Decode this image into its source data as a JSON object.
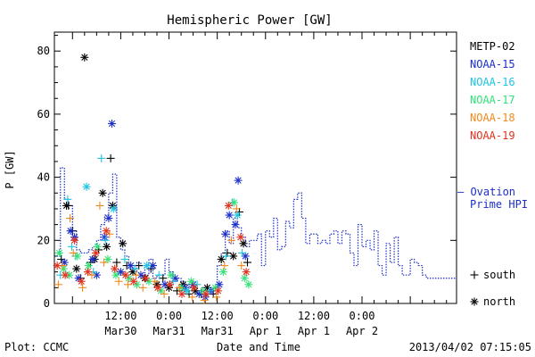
{
  "chart_data": {
    "type": "scatter",
    "title": "Hemispheric Power [GW]",
    "ylabel": "P [GW]",
    "xlabel": "Date and Time",
    "ylim": [
      0,
      86
    ],
    "xlim_hours": [
      -16.5,
      83.5
    ],
    "y_ticks": [
      0,
      20,
      40,
      60,
      80
    ],
    "x_ticks": [
      {
        "t": 0,
        "line1": "12:00",
        "line2": "Mar30"
      },
      {
        "t": 12,
        "line1": "0:00",
        "line2": "Mar31"
      },
      {
        "t": 24,
        "line1": "12:00",
        "line2": "Mar31"
      },
      {
        "t": 36,
        "line1": "0:00",
        "line2": "Apr 1"
      },
      {
        "t": 48,
        "line1": "12:00",
        "line2": "Apr 1"
      },
      {
        "t": 60,
        "line1": "0:00",
        "line2": "Apr 2"
      }
    ],
    "x_axis_note": "x values are hours relative to 2013-03-30 12:00 UT",
    "series": [
      {
        "name": "METP-02",
        "color": "#000000",
        "points": [
          {
            "x": -14.8,
            "y": 14,
            "m": "+"
          },
          {
            "x": -13.5,
            "y": 31,
            "m": "*"
          },
          {
            "x": -13,
            "y": 31,
            "m": "+"
          },
          {
            "x": -12,
            "y": 23,
            "m": "+"
          },
          {
            "x": -11,
            "y": 11,
            "m": "*"
          },
          {
            "x": -10,
            "y": 8,
            "m": "+"
          },
          {
            "x": -9,
            "y": 78,
            "m": "*"
          },
          {
            "x": -7.5,
            "y": 13,
            "m": "+"
          },
          {
            "x": -6.5,
            "y": 14,
            "m": "*"
          },
          {
            "x": -5.5,
            "y": 17,
            "m": "+"
          },
          {
            "x": -4.5,
            "y": 35,
            "m": "*"
          },
          {
            "x": -3.5,
            "y": 18,
            "m": "*"
          },
          {
            "x": -2.5,
            "y": 46,
            "m": "+"
          },
          {
            "x": -2,
            "y": 31,
            "m": "*"
          },
          {
            "x": -1,
            "y": 13,
            "m": "+"
          },
          {
            "x": 0.5,
            "y": 19,
            "m": "*"
          },
          {
            "x": 1.5,
            "y": 12,
            "m": "+"
          },
          {
            "x": 3,
            "y": 10,
            "m": "*"
          },
          {
            "x": 4.5,
            "y": 12,
            "m": "+"
          },
          {
            "x": 6,
            "y": 8,
            "m": "*"
          },
          {
            "x": 7.5,
            "y": 11,
            "m": "+"
          },
          {
            "x": 9,
            "y": 6,
            "m": "*"
          },
          {
            "x": 10.5,
            "y": 8,
            "m": "+"
          },
          {
            "x": 12,
            "y": 5,
            "m": "*"
          },
          {
            "x": 14,
            "y": 4,
            "m": "+"
          },
          {
            "x": 15.5,
            "y": 6,
            "m": "*"
          },
          {
            "x": 17,
            "y": 3,
            "m": "+"
          },
          {
            "x": 18.5,
            "y": 4,
            "m": "*"
          },
          {
            "x": 20,
            "y": 3,
            "m": "+"
          },
          {
            "x": 21.5,
            "y": 5,
            "m": "*"
          },
          {
            "x": 23,
            "y": 3,
            "m": "+"
          },
          {
            "x": 25,
            "y": 14,
            "m": "*"
          },
          {
            "x": 26.5,
            "y": 16,
            "m": "+"
          },
          {
            "x": 28,
            "y": 15,
            "m": "*"
          },
          {
            "x": 29.5,
            "y": 29,
            "m": "+"
          },
          {
            "x": 30.5,
            "y": 19,
            "m": "*"
          },
          {
            "x": 31.5,
            "y": 13,
            "m": "+"
          }
        ]
      },
      {
        "name": "NOAA-15",
        "color": "#1c2fc8",
        "points": [
          {
            "x": -14,
            "y": 13,
            "m": "*"
          },
          {
            "x": -12.5,
            "y": 23,
            "m": "*"
          },
          {
            "x": -11.5,
            "y": 21,
            "m": "*"
          },
          {
            "x": -10.5,
            "y": 8,
            "m": "*"
          },
          {
            "x": -7,
            "y": 14,
            "m": "*"
          },
          {
            "x": -6,
            "y": 9,
            "m": "*"
          },
          {
            "x": -4,
            "y": 21,
            "m": "*"
          },
          {
            "x": -3,
            "y": 27,
            "m": "*"
          },
          {
            "x": -2.2,
            "y": 57,
            "m": "*"
          },
          {
            "x": 0,
            "y": 10,
            "m": "*"
          },
          {
            "x": 2.5,
            "y": 12,
            "m": "*"
          },
          {
            "x": 5,
            "y": 9,
            "m": "*"
          },
          {
            "x": 8,
            "y": 12,
            "m": "*"
          },
          {
            "x": 11,
            "y": 6,
            "m": "*"
          },
          {
            "x": 13.5,
            "y": 8,
            "m": "*"
          },
          {
            "x": 16,
            "y": 5,
            "m": "*"
          },
          {
            "x": 18,
            "y": 6,
            "m": "*"
          },
          {
            "x": 19.5,
            "y": 3,
            "m": "*"
          },
          {
            "x": 21,
            "y": 2,
            "m": "*"
          },
          {
            "x": 22.5,
            "y": 4,
            "m": "*"
          },
          {
            "x": 24.5,
            "y": 6,
            "m": "*"
          },
          {
            "x": 26,
            "y": 22,
            "m": "*"
          },
          {
            "x": 27,
            "y": 28,
            "m": "*"
          },
          {
            "x": 28.5,
            "y": 25,
            "m": "*"
          },
          {
            "x": 29.2,
            "y": 39,
            "m": "*"
          },
          {
            "x": 31,
            "y": 15,
            "m": "*"
          }
        ]
      },
      {
        "name": "NOAA-16",
        "color": "#1fc4e0",
        "points": [
          {
            "x": -15,
            "y": 9,
            "m": "+"
          },
          {
            "x": -13.2,
            "y": 33,
            "m": "+"
          },
          {
            "x": -12.2,
            "y": 18,
            "m": "+"
          },
          {
            "x": -11.2,
            "y": 15,
            "m": "+"
          },
          {
            "x": -8.5,
            "y": 37,
            "m": "*"
          },
          {
            "x": -6.8,
            "y": 10,
            "m": "+"
          },
          {
            "x": -4.8,
            "y": 46,
            "m": "+"
          },
          {
            "x": -3.8,
            "y": 20,
            "m": "+"
          },
          {
            "x": -1.8,
            "y": 30,
            "m": "*"
          },
          {
            "x": 1,
            "y": 14,
            "m": "+"
          },
          {
            "x": 3.5,
            "y": 11,
            "m": "+"
          },
          {
            "x": 6.5,
            "y": 12,
            "m": "*"
          },
          {
            "x": 9.5,
            "y": 9,
            "m": "+"
          },
          {
            "x": 13,
            "y": 7,
            "m": "+"
          },
          {
            "x": 16.5,
            "y": 4,
            "m": "*"
          },
          {
            "x": 19,
            "y": 6,
            "m": "+"
          },
          {
            "x": 22,
            "y": 4,
            "m": "+"
          },
          {
            "x": 26.2,
            "y": 15,
            "m": "+"
          },
          {
            "x": 27.8,
            "y": 32,
            "m": "+"
          },
          {
            "x": 29,
            "y": 28,
            "m": "*"
          },
          {
            "x": 30.2,
            "y": 16,
            "m": "+"
          }
        ]
      },
      {
        "name": "NOAA-17",
        "color": "#35e07a",
        "points": [
          {
            "x": -15.3,
            "y": 16,
            "m": "*"
          },
          {
            "x": -14.2,
            "y": 11,
            "m": "*"
          },
          {
            "x": -12.8,
            "y": 9,
            "m": "*"
          },
          {
            "x": -10.8,
            "y": 15,
            "m": "*"
          },
          {
            "x": -8,
            "y": 12,
            "m": "*"
          },
          {
            "x": -5.8,
            "y": 18,
            "m": "*"
          },
          {
            "x": -3.2,
            "y": 14,
            "m": "*"
          },
          {
            "x": -1.2,
            "y": 9,
            "m": "*"
          },
          {
            "x": 2,
            "y": 8,
            "m": "*"
          },
          {
            "x": 4,
            "y": 6,
            "m": "*"
          },
          {
            "x": 7,
            "y": 7,
            "m": "*"
          },
          {
            "x": 10,
            "y": 4,
            "m": "*"
          },
          {
            "x": 12.5,
            "y": 9,
            "m": "*"
          },
          {
            "x": 15,
            "y": 5,
            "m": "*"
          },
          {
            "x": 17.5,
            "y": 7,
            "m": "*"
          },
          {
            "x": 20.5,
            "y": 4,
            "m": "*"
          },
          {
            "x": 23.5,
            "y": 5,
            "m": "*"
          },
          {
            "x": 25.5,
            "y": 10,
            "m": "*"
          },
          {
            "x": 28.2,
            "y": 32,
            "m": "*"
          },
          {
            "x": 30.8,
            "y": 8,
            "m": "*"
          },
          {
            "x": 31.8,
            "y": 6,
            "m": "*"
          }
        ]
      },
      {
        "name": "NOAA-18",
        "color": "#f08a1e",
        "points": [
          {
            "x": -15.5,
            "y": 6,
            "m": "+"
          },
          {
            "x": -14.5,
            "y": 12,
            "m": "+"
          },
          {
            "x": -12.6,
            "y": 27,
            "m": "+"
          },
          {
            "x": -11.8,
            "y": 16,
            "m": "+"
          },
          {
            "x": -9.5,
            "y": 5,
            "m": "+"
          },
          {
            "x": -7.2,
            "y": 9,
            "m": "+"
          },
          {
            "x": -5.2,
            "y": 31,
            "m": "+"
          },
          {
            "x": -4.2,
            "y": 13,
            "m": "+"
          },
          {
            "x": -2.8,
            "y": 22,
            "m": "+"
          },
          {
            "x": -0.5,
            "y": 7,
            "m": "+"
          },
          {
            "x": 1.8,
            "y": 6,
            "m": "+"
          },
          {
            "x": 3.8,
            "y": 9,
            "m": "+"
          },
          {
            "x": 5.5,
            "y": 5,
            "m": "+"
          },
          {
            "x": 8.5,
            "y": 7,
            "m": "+"
          },
          {
            "x": 10.8,
            "y": 3,
            "m": "+"
          },
          {
            "x": 14.5,
            "y": 5,
            "m": "+"
          },
          {
            "x": 17.8,
            "y": 2,
            "m": "+"
          },
          {
            "x": 20.8,
            "y": 1,
            "m": "+"
          },
          {
            "x": 23.8,
            "y": 2,
            "m": "+"
          },
          {
            "x": 25.8,
            "y": 12,
            "m": "+"
          },
          {
            "x": 27.5,
            "y": 20,
            "m": "+"
          },
          {
            "x": 28.8,
            "y": 30,
            "m": "+"
          },
          {
            "x": 30,
            "y": 12,
            "m": "+"
          }
        ]
      },
      {
        "name": "NOAA-19",
        "color": "#e0321e",
        "points": [
          {
            "x": -15.8,
            "y": 12,
            "m": "*"
          },
          {
            "x": -13.8,
            "y": 9,
            "m": "*"
          },
          {
            "x": -11.5,
            "y": 20,
            "m": "*"
          },
          {
            "x": -9.8,
            "y": 7,
            "m": "*"
          },
          {
            "x": -8.2,
            "y": 10,
            "m": "*"
          },
          {
            "x": -6.2,
            "y": 16,
            "m": "*"
          },
          {
            "x": -3.6,
            "y": 23,
            "m": "*"
          },
          {
            "x": -1.5,
            "y": 11,
            "m": "*"
          },
          {
            "x": 1.2,
            "y": 9,
            "m": "*"
          },
          {
            "x": 3.2,
            "y": 7,
            "m": "*"
          },
          {
            "x": 6.2,
            "y": 8,
            "m": "*"
          },
          {
            "x": 9.2,
            "y": 5,
            "m": "*"
          },
          {
            "x": 12.2,
            "y": 6,
            "m": "*"
          },
          {
            "x": 15.2,
            "y": 3,
            "m": "*"
          },
          {
            "x": 18.2,
            "y": 5,
            "m": "*"
          },
          {
            "x": 21.2,
            "y": 3,
            "m": "*"
          },
          {
            "x": 24.2,
            "y": 4,
            "m": "*"
          },
          {
            "x": 26.8,
            "y": 31,
            "m": "*"
          },
          {
            "x": 29.8,
            "y": 21,
            "m": "*"
          },
          {
            "x": 31.2,
            "y": 10,
            "m": "*"
          }
        ]
      }
    ],
    "ovation": {
      "name_line1": "— Ovation",
      "name_line2": "Prime HPI",
      "color": "#1c2fc8",
      "steps": [
        [
          -16,
          15
        ],
        [
          -15,
          43
        ],
        [
          -14,
          33
        ],
        [
          -13,
          31
        ],
        [
          -12,
          23
        ],
        [
          -11,
          17
        ],
        [
          -10,
          16
        ],
        [
          -9,
          16
        ],
        [
          -8,
          17
        ],
        [
          -7,
          18
        ],
        [
          -6,
          20
        ],
        [
          -5,
          25
        ],
        [
          -4,
          28
        ],
        [
          -3,
          35
        ],
        [
          -2,
          41
        ],
        [
          -1,
          21
        ],
        [
          0,
          17
        ],
        [
          1,
          15
        ],
        [
          2,
          11
        ],
        [
          3,
          10
        ],
        [
          4,
          13
        ],
        [
          5,
          12
        ],
        [
          6,
          9
        ],
        [
          7,
          14
        ],
        [
          8,
          8
        ],
        [
          9,
          9
        ],
        [
          10,
          9
        ],
        [
          11,
          14
        ],
        [
          12,
          10
        ],
        [
          13,
          7
        ],
        [
          14,
          8
        ],
        [
          15,
          7
        ],
        [
          16,
          6
        ],
        [
          17,
          5
        ],
        [
          18,
          6
        ],
        [
          19,
          4
        ],
        [
          20,
          5
        ],
        [
          21,
          4
        ],
        [
          22,
          4
        ],
        [
          23,
          5
        ],
        [
          24,
          12
        ],
        [
          25,
          16
        ],
        [
          26,
          23
        ],
        [
          27,
          19
        ],
        [
          28,
          27
        ],
        [
          29,
          24
        ],
        [
          30,
          21
        ],
        [
          31,
          18
        ],
        [
          32,
          20
        ],
        [
          33,
          20
        ],
        [
          34,
          22
        ],
        [
          35,
          12
        ],
        [
          36,
          23
        ],
        [
          37,
          21
        ],
        [
          38,
          27
        ],
        [
          39,
          17
        ],
        [
          40,
          18
        ],
        [
          41,
          26
        ],
        [
          42,
          24
        ],
        [
          43,
          33
        ],
        [
          44,
          35
        ],
        [
          45,
          27
        ],
        [
          46,
          19
        ],
        [
          47,
          22
        ],
        [
          48,
          22
        ],
        [
          49,
          19
        ],
        [
          50,
          20
        ],
        [
          51,
          19
        ],
        [
          52,
          22
        ],
        [
          53,
          23
        ],
        [
          54,
          19
        ],
        [
          55,
          23
        ],
        [
          56,
          22
        ],
        [
          57,
          16
        ],
        [
          58,
          12
        ],
        [
          59,
          25
        ],
        [
          60,
          18
        ],
        [
          61,
          20
        ],
        [
          62,
          17
        ],
        [
          63,
          23
        ],
        [
          64,
          12
        ],
        [
          65,
          9
        ],
        [
          66,
          19
        ],
        [
          67,
          13
        ],
        [
          68,
          21
        ],
        [
          69,
          12
        ],
        [
          70,
          9
        ],
        [
          71,
          9
        ],
        [
          72,
          14
        ],
        [
          73,
          13
        ],
        [
          74,
          12
        ],
        [
          75,
          9
        ],
        [
          76,
          8
        ],
        [
          77,
          8
        ],
        [
          78,
          8
        ],
        [
          79,
          8
        ],
        [
          80,
          8
        ],
        [
          81,
          8
        ],
        [
          82,
          8
        ],
        [
          83,
          8
        ]
      ]
    },
    "legend_position": "right",
    "marker_legend": [
      {
        "marker": "+",
        "label": "south"
      },
      {
        "marker": "*",
        "label": "north"
      }
    ]
  },
  "footer": {
    "plot_credit": "Plot: CCMC",
    "timestamp": "2013/04/02 07:15:05"
  }
}
